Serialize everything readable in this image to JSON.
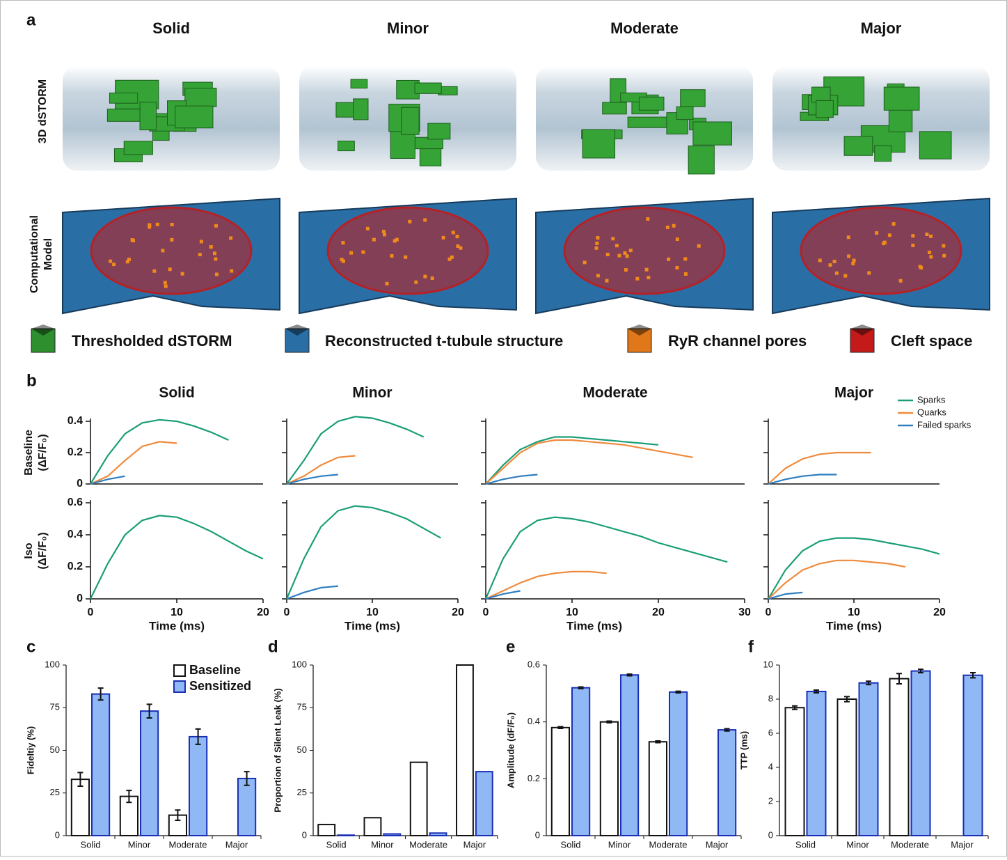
{
  "panel_labels": [
    "a",
    "b",
    "c",
    "d",
    "e",
    "f"
  ],
  "panel_a": {
    "columns": [
      "Solid",
      "Minor",
      "Moderate",
      "Major"
    ],
    "row_labels": [
      "3D dSTORM",
      "Computational",
      "Model"
    ],
    "legend": [
      {
        "label": "Thresholded dSTORM",
        "color": "#2e8f2e"
      },
      {
        "label": "Reconstructed t-tubule structure",
        "color": "#2a6ea6"
      },
      {
        "label": "RyR channel pores",
        "color": "#e0781a"
      },
      {
        "label": "Cleft space",
        "color": "#c41a1a"
      }
    ]
  },
  "chart_data": [
    {
      "type": "line",
      "title": "Solid",
      "ylabel": [
        "Baseline",
        "(ΔF/F₀)"
      ],
      "xlim": [
        0,
        20
      ],
      "ylim": [
        0,
        0.4
      ],
      "yticks": [
        0,
        0.2,
        0.4
      ],
      "x": [
        0,
        2,
        4,
        6,
        8,
        10,
        12,
        14,
        16
      ],
      "series": [
        {
          "name": "Sparks",
          "color": "#1a9e77",
          "values": [
            0,
            0.18,
            0.32,
            0.39,
            0.41,
            0.4,
            0.37,
            0.33,
            0.28
          ]
        },
        {
          "name": "Quarks",
          "color": "#ef8a3c",
          "values": [
            0,
            0.05,
            0.15,
            0.24,
            0.27,
            0.26,
            null,
            null,
            null
          ]
        },
        {
          "name": "Failed sparks",
          "color": "#2f7ebf",
          "values": [
            0,
            0.03,
            0.05,
            null,
            null,
            null,
            null,
            null,
            null
          ]
        }
      ]
    },
    {
      "type": "line",
      "title": "Minor",
      "xlim": [
        0,
        20
      ],
      "ylim": [
        0,
        0.4
      ],
      "yticks": [
        0,
        0.2,
        0.4
      ],
      "x": [
        0,
        2,
        4,
        6,
        8,
        10,
        12,
        14,
        16
      ],
      "series": [
        {
          "name": "Sparks",
          "color": "#1a9e77",
          "values": [
            0,
            0.15,
            0.32,
            0.4,
            0.43,
            0.42,
            0.39,
            0.35,
            0.3
          ]
        },
        {
          "name": "Quarks",
          "color": "#ef8a3c",
          "values": [
            0,
            0.05,
            0.12,
            0.17,
            0.18,
            null,
            null,
            null,
            null
          ]
        },
        {
          "name": "Failed sparks",
          "color": "#2f7ebf",
          "values": [
            0,
            0.03,
            0.05,
            0.06,
            null,
            null,
            null,
            null,
            null
          ]
        }
      ]
    },
    {
      "type": "line",
      "title": "Moderate",
      "xlim": [
        0,
        30
      ],
      "ylim": [
        0,
        0.4
      ],
      "yticks": [
        0,
        0.2,
        0.4
      ],
      "x": [
        0,
        2,
        4,
        6,
        8,
        10,
        12,
        14,
        16,
        18,
        20,
        22,
        24
      ],
      "series": [
        {
          "name": "Sparks",
          "color": "#1a9e77",
          "values": [
            0,
            0.12,
            0.22,
            0.27,
            0.3,
            0.3,
            0.29,
            0.28,
            0.27,
            0.26,
            0.25,
            null,
            null
          ]
        },
        {
          "name": "Quarks",
          "color": "#ef8a3c",
          "values": [
            0,
            0.1,
            0.2,
            0.26,
            0.28,
            0.28,
            0.27,
            0.26,
            0.25,
            0.23,
            0.21,
            0.19,
            0.17
          ]
        },
        {
          "name": "Failed sparks",
          "color": "#2f7ebf",
          "values": [
            0,
            0.03,
            0.05,
            0.06,
            null,
            null,
            null,
            null,
            null,
            null,
            null,
            null,
            null
          ]
        }
      ]
    },
    {
      "type": "line",
      "title": "Major",
      "legend": "upper right",
      "xlim": [
        0,
        20
      ],
      "ylim": [
        0,
        0.4
      ],
      "yticks": [
        0,
        0.2,
        0.4
      ],
      "x": [
        0,
        2,
        4,
        6,
        8,
        10,
        12,
        14,
        16
      ],
      "series": [
        {
          "name": "Sparks",
          "color": "#1a9e77",
          "values": [
            null,
            null,
            null,
            null,
            null,
            null,
            null,
            null,
            null
          ]
        },
        {
          "name": "Quarks",
          "color": "#ef8a3c",
          "values": [
            0,
            0.1,
            0.16,
            0.19,
            0.2,
            0.2,
            0.2,
            null,
            null
          ]
        },
        {
          "name": "Failed sparks",
          "color": "#2f7ebf",
          "values": [
            0,
            0.03,
            0.05,
            0.06,
            0.06,
            null,
            null,
            null,
            null
          ]
        }
      ]
    },
    {
      "type": "line",
      "ylabel": [
        "Iso",
        "(ΔF/F₀)"
      ],
      "xlabel": "Time (ms)",
      "xlim": [
        0,
        20
      ],
      "xticks": [
        0,
        10,
        20
      ],
      "ylim": [
        0,
        0.6
      ],
      "yticks": [
        0,
        0.2,
        0.4,
        0.6
      ],
      "x": [
        0,
        2,
        4,
        6,
        8,
        10,
        12,
        14,
        16,
        18,
        20
      ],
      "series": [
        {
          "name": "Sparks",
          "color": "#1a9e77",
          "values": [
            0,
            0.22,
            0.4,
            0.49,
            0.52,
            0.51,
            0.47,
            0.42,
            0.36,
            0.3,
            0.25
          ]
        }
      ]
    },
    {
      "type": "line",
      "xlabel": "Time (ms)",
      "xlim": [
        0,
        20
      ],
      "xticks": [
        0,
        10,
        20
      ],
      "ylim": [
        0,
        0.6
      ],
      "yticks": [
        0,
        0.2,
        0.4,
        0.6
      ],
      "x": [
        0,
        2,
        4,
        6,
        8,
        10,
        12,
        14,
        16,
        18,
        20
      ],
      "series": [
        {
          "name": "Sparks",
          "color": "#1a9e77",
          "values": [
            0,
            0.25,
            0.45,
            0.55,
            0.58,
            0.57,
            0.54,
            0.5,
            0.44,
            0.38,
            null
          ]
        },
        {
          "name": "Failed sparks",
          "color": "#2f7ebf",
          "values": [
            0,
            0.04,
            0.07,
            0.08,
            null,
            null,
            null,
            null,
            null,
            null,
            null
          ]
        }
      ]
    },
    {
      "type": "line",
      "xlabel": "Time (ms)",
      "xlim": [
        0,
        30
      ],
      "xticks": [
        0,
        10,
        20,
        30
      ],
      "ylim": [
        0,
        0.6
      ],
      "yticks": [
        0,
        0.2,
        0.4,
        0.6
      ],
      "x": [
        0,
        2,
        4,
        6,
        8,
        10,
        12,
        14,
        16,
        18,
        20,
        22,
        24,
        26,
        28,
        30
      ],
      "series": [
        {
          "name": "Sparks",
          "color": "#1a9e77",
          "values": [
            0,
            0.25,
            0.42,
            0.49,
            0.51,
            0.5,
            0.48,
            0.45,
            0.42,
            0.39,
            0.35,
            0.32,
            0.29,
            0.26,
            0.23,
            null
          ]
        },
        {
          "name": "Quarks",
          "color": "#ef8a3c",
          "values": [
            0,
            0.05,
            0.1,
            0.14,
            0.16,
            0.17,
            0.17,
            0.16,
            null,
            null,
            null,
            null,
            null,
            null,
            null,
            null
          ]
        },
        {
          "name": "Failed sparks",
          "color": "#2f7ebf",
          "values": [
            0,
            0.03,
            0.05,
            null,
            null,
            null,
            null,
            null,
            null,
            null,
            null,
            null,
            null,
            null,
            null,
            null
          ]
        }
      ]
    },
    {
      "type": "line",
      "xlabel": "Time (ms)",
      "xlim": [
        0,
        20
      ],
      "xticks": [
        0,
        10,
        20
      ],
      "ylim": [
        0,
        0.6
      ],
      "yticks": [
        0,
        0.2,
        0.4,
        0.6
      ],
      "x": [
        0,
        2,
        4,
        6,
        8,
        10,
        12,
        14,
        16,
        18,
        20
      ],
      "series": [
        {
          "name": "Sparks",
          "color": "#1a9e77",
          "values": [
            0,
            0.18,
            0.3,
            0.36,
            0.38,
            0.38,
            0.37,
            0.35,
            0.33,
            0.31,
            0.28
          ]
        },
        {
          "name": "Quarks",
          "color": "#ef8a3c",
          "values": [
            0,
            0.1,
            0.18,
            0.22,
            0.24,
            0.24,
            0.23,
            0.22,
            0.2,
            null,
            null
          ]
        },
        {
          "name": "Failed sparks",
          "color": "#2f7ebf",
          "values": [
            0,
            0.03,
            0.04,
            null,
            null,
            null,
            null,
            null,
            null,
            null,
            null
          ]
        }
      ]
    },
    {
      "type": "bar",
      "ylabel": "Fideltiy (%)",
      "legend": "upper right",
      "categories": [
        "Solid",
        "Minor",
        "Moderate",
        "Major"
      ],
      "ylim": [
        0,
        100
      ],
      "yticks": [
        0,
        25,
        50,
        75,
        100
      ],
      "series": [
        {
          "name": "Baseline",
          "color": "#ffffff",
          "edge": "#111111",
          "text_color": "#111111",
          "values": [
            33,
            23,
            12,
            null
          ],
          "errors": [
            4,
            3.5,
            3,
            null
          ]
        },
        {
          "name": "Sensitized",
          "color": "#8fb8f5",
          "edge": "#1a2fb5",
          "text_color": "#8fb8f5",
          "values": [
            83,
            73,
            58,
            33.5
          ],
          "errors": [
            3.5,
            4,
            4.5,
            4
          ]
        }
      ]
    },
    {
      "type": "bar",
      "ylabel": "Proportion of Silent Leak (%)",
      "categories": [
        "Solid",
        "Minor",
        "Moderate",
        "Major"
      ],
      "ylim": [
        0,
        100
      ],
      "yticks": [
        0,
        25,
        50,
        75,
        100
      ],
      "series": [
        {
          "name": "Baseline",
          "color": "#ffffff",
          "edge": "#111111",
          "values": [
            6.5,
            10.5,
            43,
            100
          ]
        },
        {
          "name": "Sensitized",
          "color": "#8fb8f5",
          "edge": "#1a2fb5",
          "values": [
            0.3,
            1,
            1.5,
            37.5
          ]
        }
      ]
    },
    {
      "type": "bar",
      "ylabel": "Amplitude (dF/F₀)",
      "categories": [
        "Solid",
        "Minor",
        "Moderate",
        "Major"
      ],
      "ylim": [
        0,
        0.6
      ],
      "yticks": [
        0,
        0.2,
        0.4,
        0.6
      ],
      "series": [
        {
          "name": "Baseline",
          "color": "#ffffff",
          "edge": "#111111",
          "values": [
            0.38,
            0.4,
            0.33,
            null
          ],
          "errors": [
            0.003,
            0.003,
            0.003,
            null
          ]
        },
        {
          "name": "Sensitized",
          "color": "#8fb8f5",
          "edge": "#1a2fb5",
          "values": [
            0.52,
            0.565,
            0.505,
            0.372
          ],
          "errors": [
            0.003,
            0.003,
            0.003,
            0.004
          ]
        }
      ]
    },
    {
      "type": "bar",
      "ylabel": "TTP (ms)",
      "categories": [
        "Solid",
        "Minor",
        "Moderate",
        "Major"
      ],
      "ylim": [
        0,
        10
      ],
      "yticks": [
        0,
        2,
        4,
        6,
        8,
        10
      ],
      "series": [
        {
          "name": "Baseline",
          "color": "#ffffff",
          "edge": "#111111",
          "values": [
            7.5,
            8,
            9.2,
            null
          ],
          "errors": [
            0.1,
            0.15,
            0.3,
            null
          ]
        },
        {
          "name": "Sensitized",
          "color": "#8fb8f5",
          "edge": "#1a2fb5",
          "values": [
            8.45,
            8.95,
            9.65,
            9.4
          ],
          "errors": [
            0.08,
            0.1,
            0.1,
            0.15
          ]
        }
      ]
    }
  ]
}
